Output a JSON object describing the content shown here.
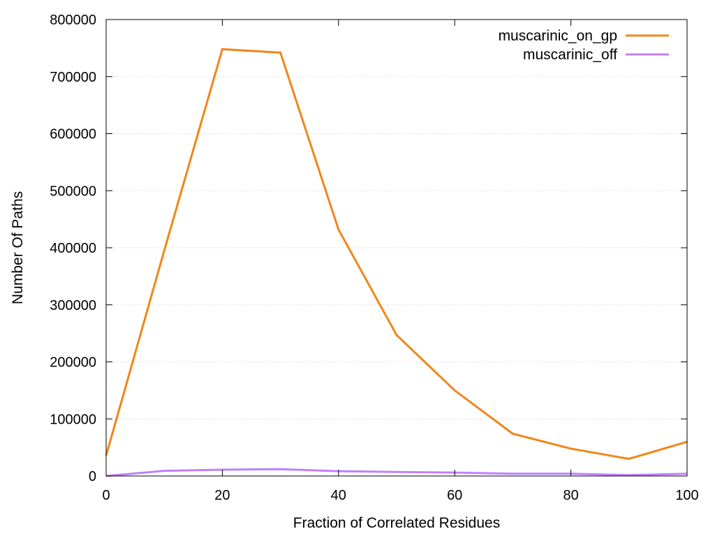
{
  "chart_data": {
    "type": "line",
    "title": "",
    "xlabel": "Fraction of Correlated Residues",
    "ylabel": "Number Of Paths",
    "xlim": [
      0,
      100
    ],
    "ylim": [
      0,
      800000
    ],
    "x_ticks": [
      "0",
      "20",
      "40",
      "60",
      "80",
      "100"
    ],
    "x_tick_values": [
      0,
      20,
      40,
      60,
      80,
      100
    ],
    "y_ticks": [
      "0",
      "100000",
      "200000",
      "300000",
      "400000",
      "500000",
      "600000",
      "700000",
      "800000"
    ],
    "y_tick_values": [
      0,
      100000,
      200000,
      300000,
      400000,
      500000,
      600000,
      700000,
      800000
    ],
    "grid": "horizontal dotted",
    "legend_position": "top-right",
    "x": [
      0,
      10,
      20,
      30,
      40,
      50,
      60,
      70,
      80,
      90,
      100
    ],
    "series": [
      {
        "name": "muscarinic_on_gp",
        "color": "#f28518",
        "values": [
          36000,
          395000,
          748000,
          742000,
          432000,
          247000,
          150000,
          74000,
          48000,
          30000,
          60000
        ]
      },
      {
        "name": "muscarinic_off",
        "color": "#c080ff",
        "values": [
          0,
          9000,
          11000,
          12000,
          8500,
          7000,
          6000,
          4000,
          4000,
          1500,
          4000
        ]
      }
    ]
  }
}
